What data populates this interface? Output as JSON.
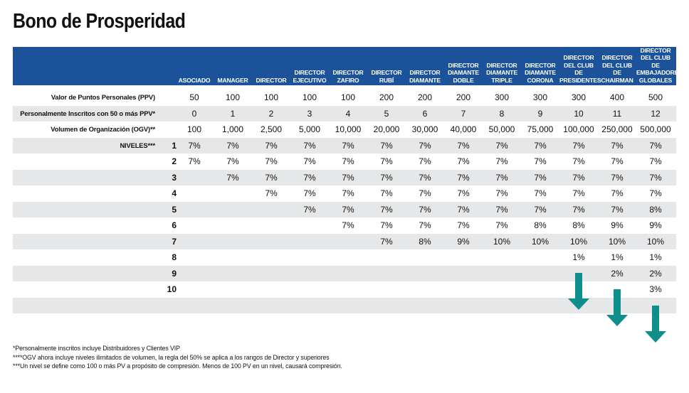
{
  "title": "Bono de Prosperidad",
  "columns": [
    [
      "ASOCIADO"
    ],
    [
      "MANAGER"
    ],
    [
      "DIRECTOR"
    ],
    [
      "DIRECTOR",
      "EJECUTIVO"
    ],
    [
      "DIRECTOR",
      "ZAFIRO"
    ],
    [
      "DIRECTOR",
      "RUBÍ"
    ],
    [
      "DIRECTOR",
      "DIAMANTE"
    ],
    [
      "DIRECTOR",
      "DIAMANTE",
      "DOBLE"
    ],
    [
      "DIRECTOR",
      "DIAMANTE",
      "TRIPLE"
    ],
    [
      "DIRECTOR",
      "DIAMANTE",
      "CORONA"
    ],
    [
      "DIRECTOR",
      "DEL CLUB DE",
      "PRESIDENTES"
    ],
    [
      "DIRECTOR",
      "DEL CLUB DE",
      "CHAIRMAN"
    ],
    [
      "DIRECTOR",
      "DEL CLUB DE",
      "EMBAJADORES",
      "GLOBALES"
    ]
  ],
  "rows": [
    {
      "label": "Valor de Puntos Personales (PPV)",
      "level": "",
      "values": [
        "50",
        "100",
        "100",
        "100",
        "100",
        "200",
        "200",
        "200",
        "300",
        "300",
        "300",
        "400",
        "500"
      ]
    },
    {
      "label": "Personalmente Inscritos con 50 o más PPV*",
      "level": "",
      "values": [
        "0",
        "1",
        "2",
        "3",
        "4",
        "5",
        "6",
        "7",
        "8",
        "9",
        "10",
        "11",
        "12"
      ]
    },
    {
      "label": "Volumen de Organización (OGV)**",
      "level": "",
      "values": [
        "100",
        "1,000",
        "2,500",
        "5,000",
        "10,000",
        "20,000",
        "30,000",
        "40,000",
        "50,000",
        "75,000",
        "100,000",
        "250,000",
        "500,000"
      ]
    },
    {
      "label": "NIVELES***",
      "level": "1",
      "values": [
        "7%",
        "7%",
        "7%",
        "7%",
        "7%",
        "7%",
        "7%",
        "7%",
        "7%",
        "7%",
        "7%",
        "7%",
        "7%"
      ]
    },
    {
      "label": "",
      "level": "2",
      "values": [
        "7%",
        "7%",
        "7%",
        "7%",
        "7%",
        "7%",
        "7%",
        "7%",
        "7%",
        "7%",
        "7%",
        "7%",
        "7%"
      ]
    },
    {
      "label": "",
      "level": "3",
      "values": [
        "",
        "7%",
        "7%",
        "7%",
        "7%",
        "7%",
        "7%",
        "7%",
        "7%",
        "7%",
        "7%",
        "7%",
        "7%"
      ]
    },
    {
      "label": "",
      "level": "4",
      "values": [
        "",
        "",
        "7%",
        "7%",
        "7%",
        "7%",
        "7%",
        "7%",
        "7%",
        "7%",
        "7%",
        "7%",
        "7%"
      ]
    },
    {
      "label": "",
      "level": "5",
      "values": [
        "",
        "",
        "",
        "7%",
        "7%",
        "7%",
        "7%",
        "7%",
        "7%",
        "7%",
        "7%",
        "7%",
        "8%"
      ]
    },
    {
      "label": "",
      "level": "6",
      "values": [
        "",
        "",
        "",
        "",
        "7%",
        "7%",
        "7%",
        "7%",
        "7%",
        "8%",
        "8%",
        "9%",
        "9%"
      ]
    },
    {
      "label": "",
      "level": "7",
      "values": [
        "",
        "",
        "",
        "",
        "",
        "7%",
        "8%",
        "9%",
        "10%",
        "10%",
        "10%",
        "10%",
        "10%"
      ]
    },
    {
      "label": "",
      "level": "8",
      "values": [
        "",
        "",
        "",
        "",
        "",
        "",
        "",
        "",
        "",
        "",
        "1%",
        "1%",
        "1%"
      ]
    },
    {
      "label": "",
      "level": "9",
      "values": [
        "",
        "",
        "",
        "",
        "",
        "",
        "",
        "",
        "",
        "",
        "",
        "2%",
        "2%"
      ]
    },
    {
      "label": "",
      "level": "10",
      "values": [
        "",
        "",
        "",
        "",
        "",
        "",
        "",
        "",
        "",
        "",
        "",
        "",
        "3%"
      ]
    },
    {
      "label": "",
      "level": "",
      "values": [
        "",
        "",
        "",
        "",
        "",
        "",
        "",
        "",
        "",
        "",
        "",
        "",
        ""
      ]
    }
  ],
  "footnotes": [
    "*Personalmente inscritos incluye Distribuidores y Clientes VIP",
    "****OGV ahora incluye niveles ilimitados de volumen, la regla del 50% se aplica a los rangos de Director y superiores",
    "***Un nivel se define como 100 o más PV a propósito de compresión. Menos de 100 PV en un nivel, causará compresión."
  ],
  "colors": {
    "header": "#1b5299",
    "shade": "#e6e7e8",
    "arrow": "#0e8f8c"
  },
  "arrows": [
    {
      "column": 10,
      "icon": "down-arrow-icon"
    },
    {
      "column": 11,
      "icon": "down-arrow-icon"
    },
    {
      "column": 12,
      "icon": "down-arrow-icon"
    }
  ]
}
